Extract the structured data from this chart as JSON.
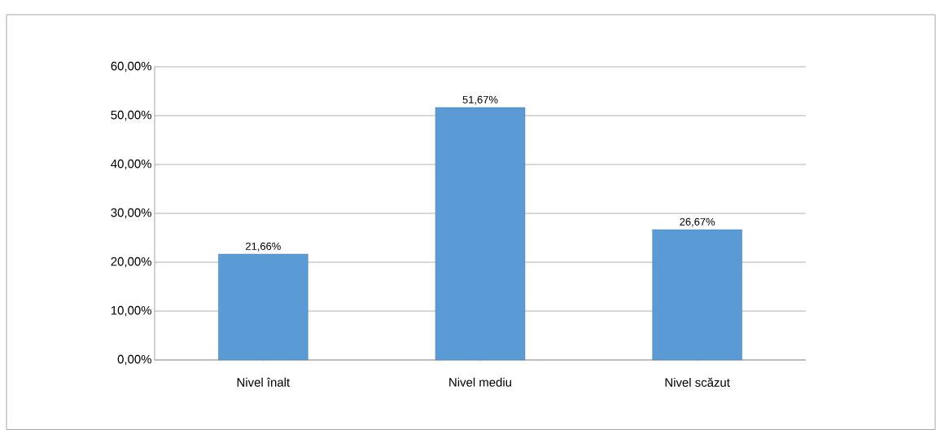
{
  "chart_data": {
    "type": "bar",
    "categories": [
      "Nivel înalt",
      "Nivel mediu",
      "Nivel scăzut"
    ],
    "values": [
      21.66,
      51.67,
      26.67
    ],
    "value_labels": [
      "21,66%",
      "51,67%",
      "26,67%"
    ],
    "color": "#5b9bd5",
    "ylim": [
      0,
      60
    ],
    "yticks": [
      {
        "value": 0,
        "label": "0,00%"
      },
      {
        "value": 10,
        "label": "10,00%"
      },
      {
        "value": 20,
        "label": "20,00%"
      },
      {
        "value": 30,
        "label": "30,00%"
      },
      {
        "value": 40,
        "label": "40,00%"
      },
      {
        "value": 50,
        "label": "50,00%"
      },
      {
        "value": 60,
        "label": "60,00%"
      }
    ],
    "grid": "y"
  }
}
